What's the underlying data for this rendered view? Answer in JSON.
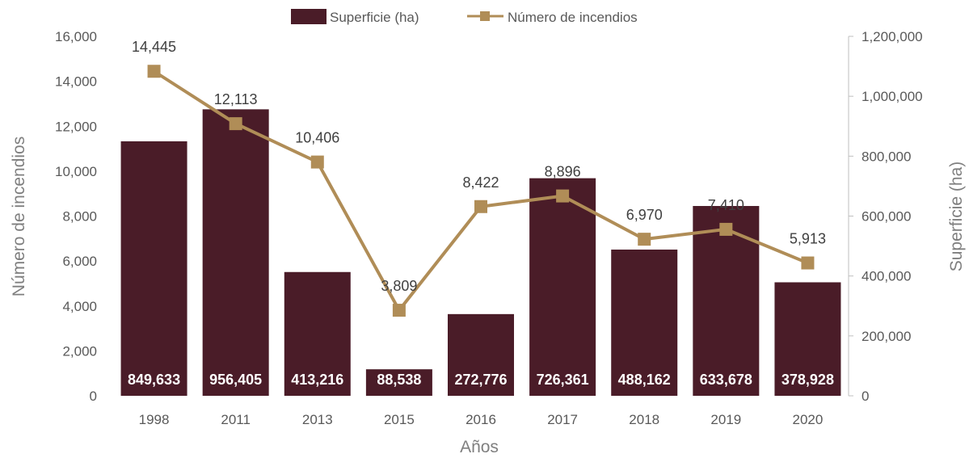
{
  "chart_data": {
    "type": "bar",
    "xlabel": "Años",
    "categories": [
      "1998",
      "2011",
      "2013",
      "2015",
      "2016",
      "2017",
      "2018",
      "2019",
      "2020"
    ],
    "series": [
      {
        "name": "Superficie (ha)",
        "type": "bar",
        "axis": "right",
        "values": [
          849633,
          956405,
          413216,
          88538,
          272776,
          726361,
          488162,
          633678,
          378928
        ],
        "value_labels": [
          "849,633",
          "956,405",
          "413,216",
          "88,538",
          "272,776",
          "726,361",
          "488,162",
          "633,678",
          "378,928"
        ]
      },
      {
        "name": "Número de incendios",
        "type": "line",
        "axis": "left",
        "values": [
          14445,
          12113,
          10406,
          3809,
          8422,
          8896,
          6970,
          7410,
          5913
        ],
        "value_labels": [
          "14,445",
          "12,113",
          "10,406",
          "3,809",
          "8,422",
          "8,896",
          "6,970",
          "7,410",
          "5,913"
        ]
      }
    ],
    "y_left": {
      "label": "Número de incendios",
      "range": [
        0,
        16000
      ],
      "ticks": [
        0,
        2000,
        4000,
        6000,
        8000,
        10000,
        12000,
        14000,
        16000
      ],
      "tick_labels": [
        "0",
        "2,000",
        "4,000",
        "6,000",
        "8,000",
        "10,000",
        "12,000",
        "14,000",
        "16,000"
      ]
    },
    "y_right": {
      "label": "Superficie (ha)",
      "range": [
        0,
        1200000
      ],
      "ticks": [
        0,
        200000,
        400000,
        600000,
        800000,
        1000000,
        1200000
      ],
      "tick_labels": [
        "0",
        "200,000",
        "400,000",
        "600,000",
        "800,000",
        "1,000,000",
        "1,200,000"
      ]
    },
    "grid": false,
    "legend": "top",
    "colors": {
      "bar": "#4a1c28",
      "line": "#b08d57",
      "marker": "#b08d57"
    }
  }
}
